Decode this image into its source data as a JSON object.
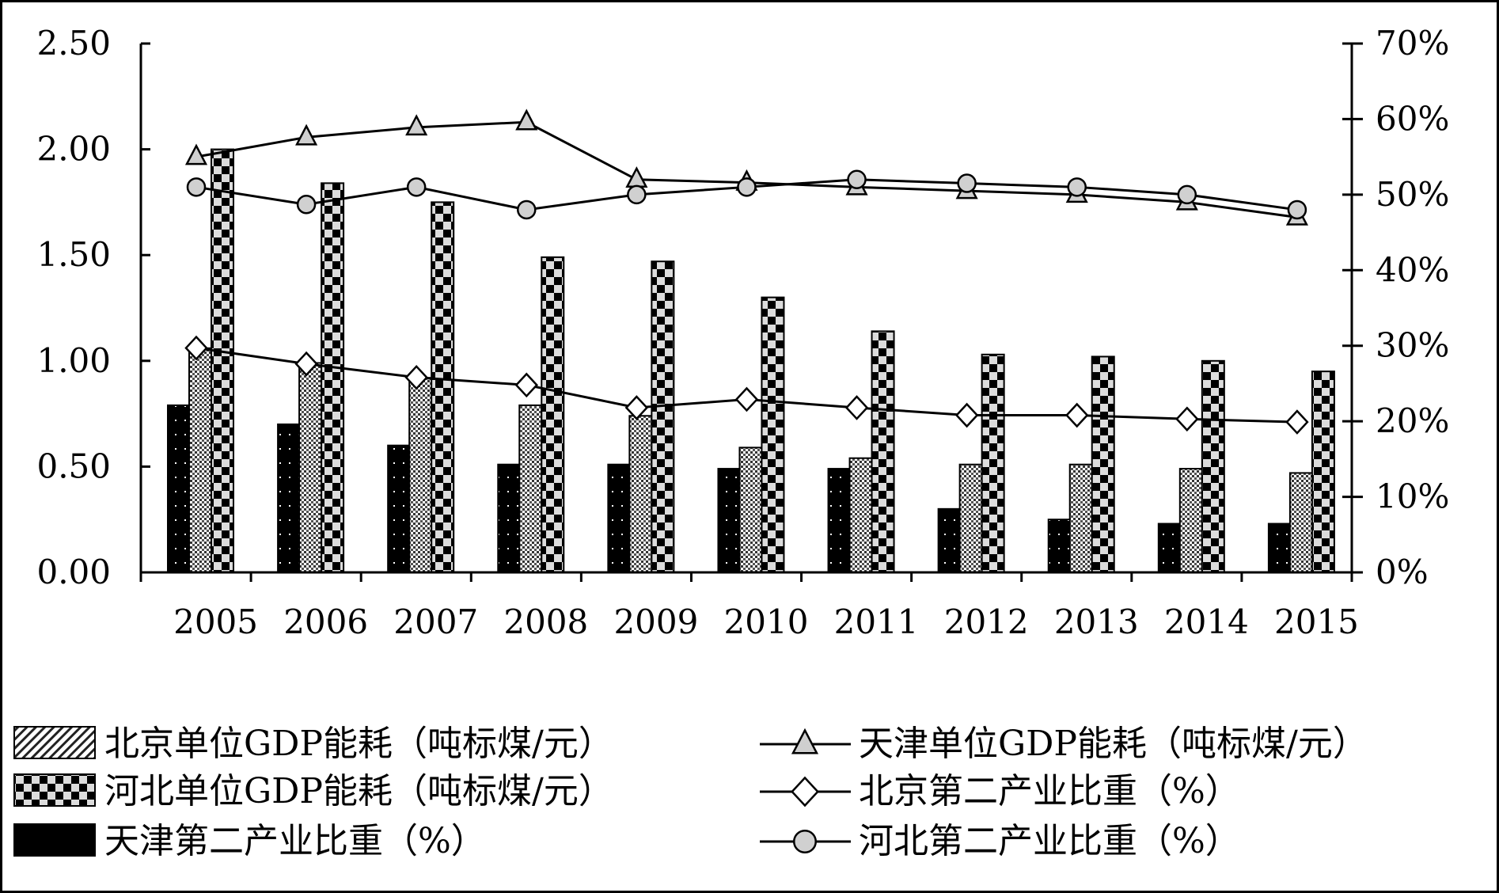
{
  "chart_data": {
    "type": "bar",
    "categories": [
      "2005",
      "2006",
      "2007",
      "2008",
      "2009",
      "2010",
      "2011",
      "2012",
      "2013",
      "2014",
      "2015"
    ],
    "y_left": {
      "ylim": [
        0,
        2.5
      ],
      "ticks": [
        0,
        0.5,
        1.0,
        1.5,
        2.0,
        2.5
      ],
      "tick_labels": [
        "0.00",
        "0.50",
        "1.00",
        "1.50",
        "2.00",
        "2.50"
      ]
    },
    "y_right": {
      "ylim": [
        0,
        70
      ],
      "ticks": [
        0,
        10,
        20,
        30,
        40,
        50,
        60,
        70
      ],
      "tick_labels": [
        "0%",
        "10%",
        "20%",
        "30%",
        "40%",
        "50%",
        "60%",
        "70%"
      ]
    },
    "grid": false,
    "legend_position": "bottom",
    "bar_series": [
      {
        "name": "天津第二产业比重（%）",
        "axis": "left",
        "pattern": "black-dots",
        "values": [
          0.79,
          0.7,
          0.6,
          0.51,
          0.51,
          0.49,
          0.49,
          0.3,
          0.25,
          0.23,
          0.23
        ]
      },
      {
        "name": "北京单位GDP能耗（吨标煤/元）",
        "axis": "left",
        "pattern": "stipple",
        "values": [
          1.06,
          0.99,
          0.92,
          0.79,
          0.74,
          0.59,
          0.54,
          0.51,
          0.51,
          0.49,
          0.47
        ]
      },
      {
        "name": "河北单位GDP能耗（吨标煤/元）",
        "axis": "left",
        "pattern": "checker",
        "values": [
          2.0,
          1.84,
          1.75,
          1.49,
          1.47,
          1.3,
          1.14,
          1.03,
          1.02,
          1.0,
          0.95
        ]
      }
    ],
    "line_series": [
      {
        "name": "天津单位GDP能耗（吨标煤/元）",
        "axis": "right",
        "marker": "triangle",
        "values": [
          55.0,
          57.6,
          58.9,
          59.6,
          52.0,
          51.6,
          51.0,
          50.5,
          50.0,
          49.0,
          47.0
        ]
      },
      {
        "name": "北京第二产业比重（%）",
        "axis": "right",
        "marker": "diamond",
        "values": [
          29.7,
          27.6,
          25.8,
          24.8,
          21.8,
          22.9,
          21.8,
          20.8,
          20.8,
          20.3,
          19.9
        ]
      },
      {
        "name": "河北第二产业比重（%）",
        "axis": "right",
        "marker": "circle",
        "values": [
          51.0,
          48.7,
          51.0,
          48.0,
          50.0,
          51.0,
          52.0,
          51.5,
          51.0,
          50.0,
          48.0
        ]
      }
    ],
    "legend": [
      {
        "label": "北京单位GDP能耗（吨标煤/元）",
        "kind": "bar",
        "pattern": "hatch"
      },
      {
        "label": "天津单位GDP能耗（吨标煤/元）",
        "kind": "line",
        "marker": "triangle"
      },
      {
        "label": "河北单位GDP能耗（吨标煤/元）",
        "kind": "bar",
        "pattern": "checker"
      },
      {
        "label": "北京第二产业比重（%）",
        "kind": "line",
        "marker": "diamond"
      },
      {
        "label": "天津第二产业比重（%）",
        "kind": "bar",
        "pattern": "solid"
      },
      {
        "label": "河北第二产业比重（%）",
        "kind": "line",
        "marker": "circle"
      }
    ]
  }
}
